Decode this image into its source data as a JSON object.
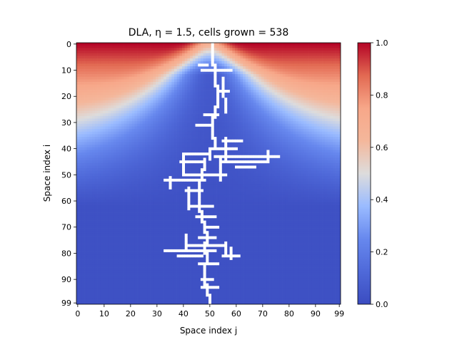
{
  "chart_data": {
    "type": "heatmap",
    "title": "DLA, η = 1.5, cells grown = 538",
    "xlabel": "Space index j",
    "ylabel": "Space index i",
    "grid_size": 100,
    "xlim": [
      0,
      99
    ],
    "ylim": [
      99,
      0
    ],
    "x_ticks": [
      0,
      10,
      20,
      30,
      40,
      50,
      60,
      70,
      80,
      90,
      99
    ],
    "y_ticks": [
      0,
      10,
      20,
      30,
      40,
      50,
      60,
      70,
      80,
      90,
      99
    ],
    "grid": false,
    "colormap": "coolwarm",
    "colorbar": {
      "min": 0.0,
      "max": 1.0,
      "ticks": [
        "0.0",
        "0.2",
        "0.4",
        "0.6",
        "0.8",
        "1.0"
      ]
    },
    "cluster_color": "#ffffff",
    "cluster_seed": [
      99,
      50
    ],
    "cluster_segments": [
      {
        "j": 50,
        "from_i": 99,
        "to_i": 96
      },
      {
        "j": 49,
        "from_i": 96,
        "to_i": 92
      },
      {
        "j": 48,
        "from_i": 92,
        "to_i": 88
      },
      {
        "j": 48,
        "from_i": 88,
        "to_i": 84
      },
      {
        "j": 49,
        "from_i": 84,
        "to_i": 80
      },
      {
        "j": 48,
        "from_i": 80,
        "to_i": 76
      },
      {
        "j": 49,
        "from_i": 76,
        "to_i": 72
      },
      {
        "j": 48,
        "from_i": 72,
        "to_i": 68
      },
      {
        "j": 47,
        "from_i": 68,
        "to_i": 64
      },
      {
        "j": 46,
        "from_i": 64,
        "to_i": 60
      },
      {
        "j": 46,
        "from_i": 60,
        "to_i": 56
      },
      {
        "j": 46,
        "from_i": 56,
        "to_i": 52
      },
      {
        "j": 47,
        "from_i": 52,
        "to_i": 48
      },
      {
        "j": 48,
        "from_i": 48,
        "to_i": 44
      },
      {
        "j": 50,
        "from_i": 44,
        "to_i": 40
      },
      {
        "j": 52,
        "from_i": 40,
        "to_i": 36
      },
      {
        "j": 51,
        "from_i": 36,
        "to_i": 32
      },
      {
        "j": 51,
        "from_i": 32,
        "to_i": 28
      },
      {
        "j": 52,
        "from_i": 28,
        "to_i": 24
      },
      {
        "j": 53,
        "from_i": 24,
        "to_i": 20
      },
      {
        "j": 53,
        "from_i": 20,
        "to_i": 16
      },
      {
        "j": 52,
        "from_i": 16,
        "to_i": 12
      },
      {
        "j": 52,
        "from_i": 12,
        "to_i": 8
      },
      {
        "j": 51,
        "from_i": 8,
        "to_i": 4
      },
      {
        "j": 51,
        "from_i": 4,
        "to_i": 0
      }
    ],
    "cluster_branches": [
      {
        "i": 10,
        "from_j": 47,
        "to_j": 58
      },
      {
        "i": 8,
        "from_j": 46,
        "to_j": 49
      },
      {
        "i": 18,
        "from_j": 54,
        "to_j": 57
      },
      {
        "i": 27,
        "from_j": 48,
        "to_j": 53
      },
      {
        "i": 31,
        "from_j": 45,
        "to_j": 51
      },
      {
        "i": 37,
        "from_j": 55,
        "to_j": 62
      },
      {
        "i": 40,
        "from_j": 50,
        "to_j": 60
      },
      {
        "i": 43,
        "from_j": 52,
        "to_j": 76
      },
      {
        "i": 45,
        "from_j": 55,
        "to_j": 72
      },
      {
        "i": 47,
        "from_j": 60,
        "to_j": 67
      },
      {
        "i": 42,
        "from_j": 40,
        "to_j": 50
      },
      {
        "i": 45,
        "from_j": 39,
        "to_j": 48
      },
      {
        "i": 50,
        "from_j": 40,
        "to_j": 56
      },
      {
        "i": 52,
        "from_j": 33,
        "to_j": 48
      },
      {
        "i": 56,
        "from_j": 41,
        "to_j": 47
      },
      {
        "i": 62,
        "from_j": 42,
        "to_j": 51
      },
      {
        "i": 66,
        "from_j": 45,
        "to_j": 52
      },
      {
        "i": 70,
        "from_j": 48,
        "to_j": 53
      },
      {
        "i": 74,
        "from_j": 46,
        "to_j": 52
      },
      {
        "i": 77,
        "from_j": 41,
        "to_j": 55
      },
      {
        "i": 79,
        "from_j": 33,
        "to_j": 52
      },
      {
        "i": 81,
        "from_j": 38,
        "to_j": 47
      },
      {
        "i": 81,
        "from_j": 55,
        "to_j": 61
      },
      {
        "i": 84,
        "from_j": 46,
        "to_j": 53
      },
      {
        "i": 90,
        "from_j": 47,
        "to_j": 51
      },
      {
        "i": 93,
        "from_j": 47,
        "to_j": 53
      }
    ],
    "cluster_arms": [
      {
        "j": 40,
        "from_i": 42,
        "to_i": 49
      },
      {
        "j": 56,
        "from_i": 36,
        "to_i": 44
      },
      {
        "j": 72,
        "from_i": 41,
        "to_i": 45
      },
      {
        "j": 35,
        "from_i": 51,
        "to_i": 55
      },
      {
        "j": 42,
        "from_i": 55,
        "to_i": 63
      },
      {
        "j": 41,
        "from_i": 73,
        "to_i": 79
      },
      {
        "j": 56,
        "from_i": 76,
        "to_i": 81
      },
      {
        "j": 58,
        "from_i": 78,
        "to_i": 82
      },
      {
        "j": 54,
        "from_i": 44,
        "to_i": 52
      },
      {
        "j": 55,
        "from_i": 13,
        "to_i": 20
      },
      {
        "j": 56,
        "from_i": 21,
        "to_i": 26
      }
    ]
  }
}
